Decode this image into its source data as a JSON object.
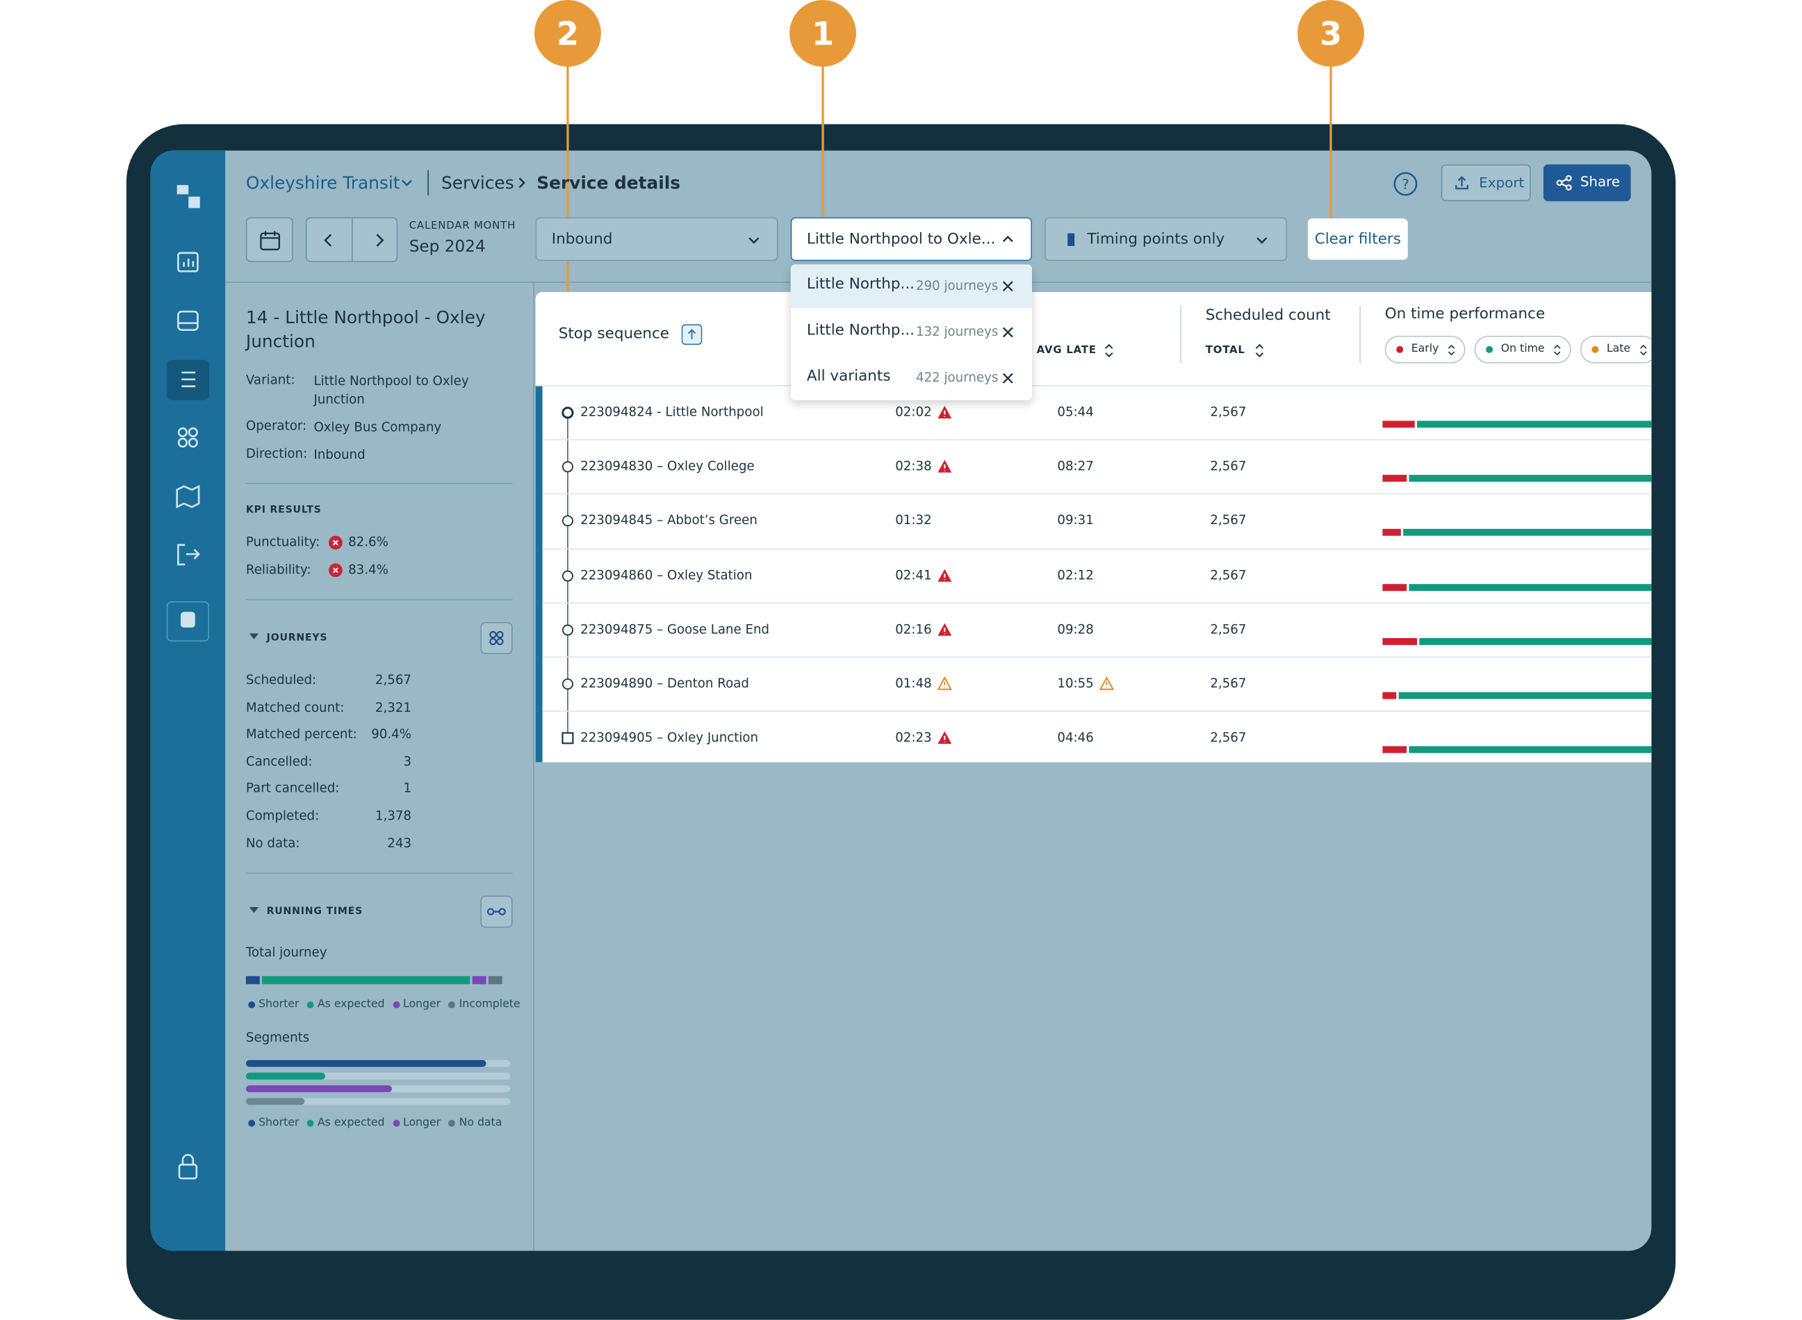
{
  "callouts": [
    "2",
    "1",
    "3"
  ],
  "breadcrumb": {
    "organisation": "Oxleyshire Transit",
    "section": "Services",
    "page": "Service details"
  },
  "actions": {
    "export": "Export",
    "share": "Share"
  },
  "calendar": {
    "label": "CALENDAR MONTH",
    "value": "Sep 2024"
  },
  "filters": {
    "direction": "Inbound",
    "variant": "Little Northpool to Oxle...",
    "timing": "Timing points only",
    "clear": "Clear filters"
  },
  "variant_options": [
    {
      "label": "Little Northp...",
      "count": "290 journeys"
    },
    {
      "label": "Little Northp...",
      "count": "132 journeys"
    },
    {
      "label": "All variants",
      "count": "422 journeys"
    }
  ],
  "service": {
    "title": "14 - Little Northpool - Oxley Junction",
    "details": [
      {
        "label": "Variant:",
        "value": "Little Northpool to Oxley Junction"
      },
      {
        "label": "Operator:",
        "value": "Oxley Bus Company"
      },
      {
        "label": "Direction:",
        "value": "Inbound"
      }
    ]
  },
  "kpi": {
    "heading": "KPI RESULTS",
    "items": [
      {
        "label": "Punctuality:",
        "value": "82.6%"
      },
      {
        "label": "Reliability:",
        "value": "83.4%"
      }
    ]
  },
  "journeys": {
    "heading": "JOURNEYS",
    "items": [
      {
        "label": "Scheduled:",
        "value": "2,567"
      },
      {
        "label": "Matched count:",
        "value": "2,321"
      },
      {
        "label": "Matched percent:",
        "value": "90.4%"
      },
      {
        "label": "Cancelled:",
        "value": "3"
      },
      {
        "label": "Part cancelled:",
        "value": "1"
      },
      {
        "label": "Completed:",
        "value": "1,378"
      },
      {
        "label": "No data:",
        "value": "243"
      }
    ]
  },
  "running_times": {
    "heading": "RUNNING TIMES",
    "total_label": "Total journey",
    "segments_label": "Segments",
    "total_bar": [
      {
        "share": 6,
        "color": "#1f4e8c"
      },
      {
        "share": 79,
        "color": "#119b7e"
      },
      {
        "share": 6,
        "color": "#7b47b8"
      },
      {
        "share": 6,
        "color": "#5f7680"
      }
    ],
    "total_legend": [
      {
        "label": "Shorter",
        "color": "#1f4e8c"
      },
      {
        "label": "As expected",
        "color": "#119b7e"
      },
      {
        "label": "Longer",
        "color": "#7b47b8"
      },
      {
        "label": "Incomplete",
        "color": "#5f7680"
      }
    ],
    "segments": [
      {
        "share": 91,
        "color": "#1f4e8c"
      },
      {
        "share": 30,
        "color": "#119b7e"
      },
      {
        "share": 55,
        "color": "#7b47b8"
      },
      {
        "share": 22,
        "color": "#6f8791"
      }
    ],
    "segments_legend": [
      {
        "label": "Shorter",
        "color": "#1f4e8c"
      },
      {
        "label": "As expected",
        "color": "#119b7e"
      },
      {
        "label": "Longer",
        "color": "#7b47b8"
      },
      {
        "label": "No data",
        "color": "#5f7680"
      }
    ]
  },
  "table": {
    "headers": {
      "stop": "Stop sequence",
      "avg_late": "AVG LATE",
      "scheduled": "Scheduled count",
      "total": "TOTAL",
      "performance": "On time performance"
    },
    "chips": [
      {
        "label": "Early",
        "color": "#d0202f"
      },
      {
        "label": "On time",
        "color": "#119b7e"
      },
      {
        "label": "Late",
        "color": "#e58a1f"
      }
    ],
    "rows": [
      {
        "stop": "223094824 - Little Northpool",
        "early": "02:02",
        "early_alert": "red",
        "late": "05:44",
        "count": "2,567",
        "early_share": 12
      },
      {
        "stop": "223094830 – Oxley College",
        "early": "02:38",
        "early_alert": "red",
        "late": "08:27",
        "count": "2,567",
        "early_share": 9
      },
      {
        "stop": "223094845 – Abbot’s Green",
        "early": "01:32",
        "late": "09:31",
        "count": "2,567",
        "early_share": 7
      },
      {
        "stop": "223094860 – Oxley Station",
        "early": "02:41",
        "early_alert": "red",
        "late": "02:12",
        "count": "2,567",
        "early_share": 9
      },
      {
        "stop": "223094875 – Goose Lane End",
        "early": "02:16",
        "early_alert": "red",
        "late": "09:28",
        "count": "2,567",
        "early_share": 13
      },
      {
        "stop": "223094890 – Denton Road",
        "early": "01:48",
        "early_alert": "amber",
        "late": "10:55",
        "late_alert": "amber",
        "count": "2,567",
        "early_share": 5
      },
      {
        "stop": "223094905 – Oxley Junction",
        "early": "02:23",
        "early_alert": "red",
        "late": "04:46",
        "count": "2,567",
        "early_share": 9
      }
    ]
  }
}
